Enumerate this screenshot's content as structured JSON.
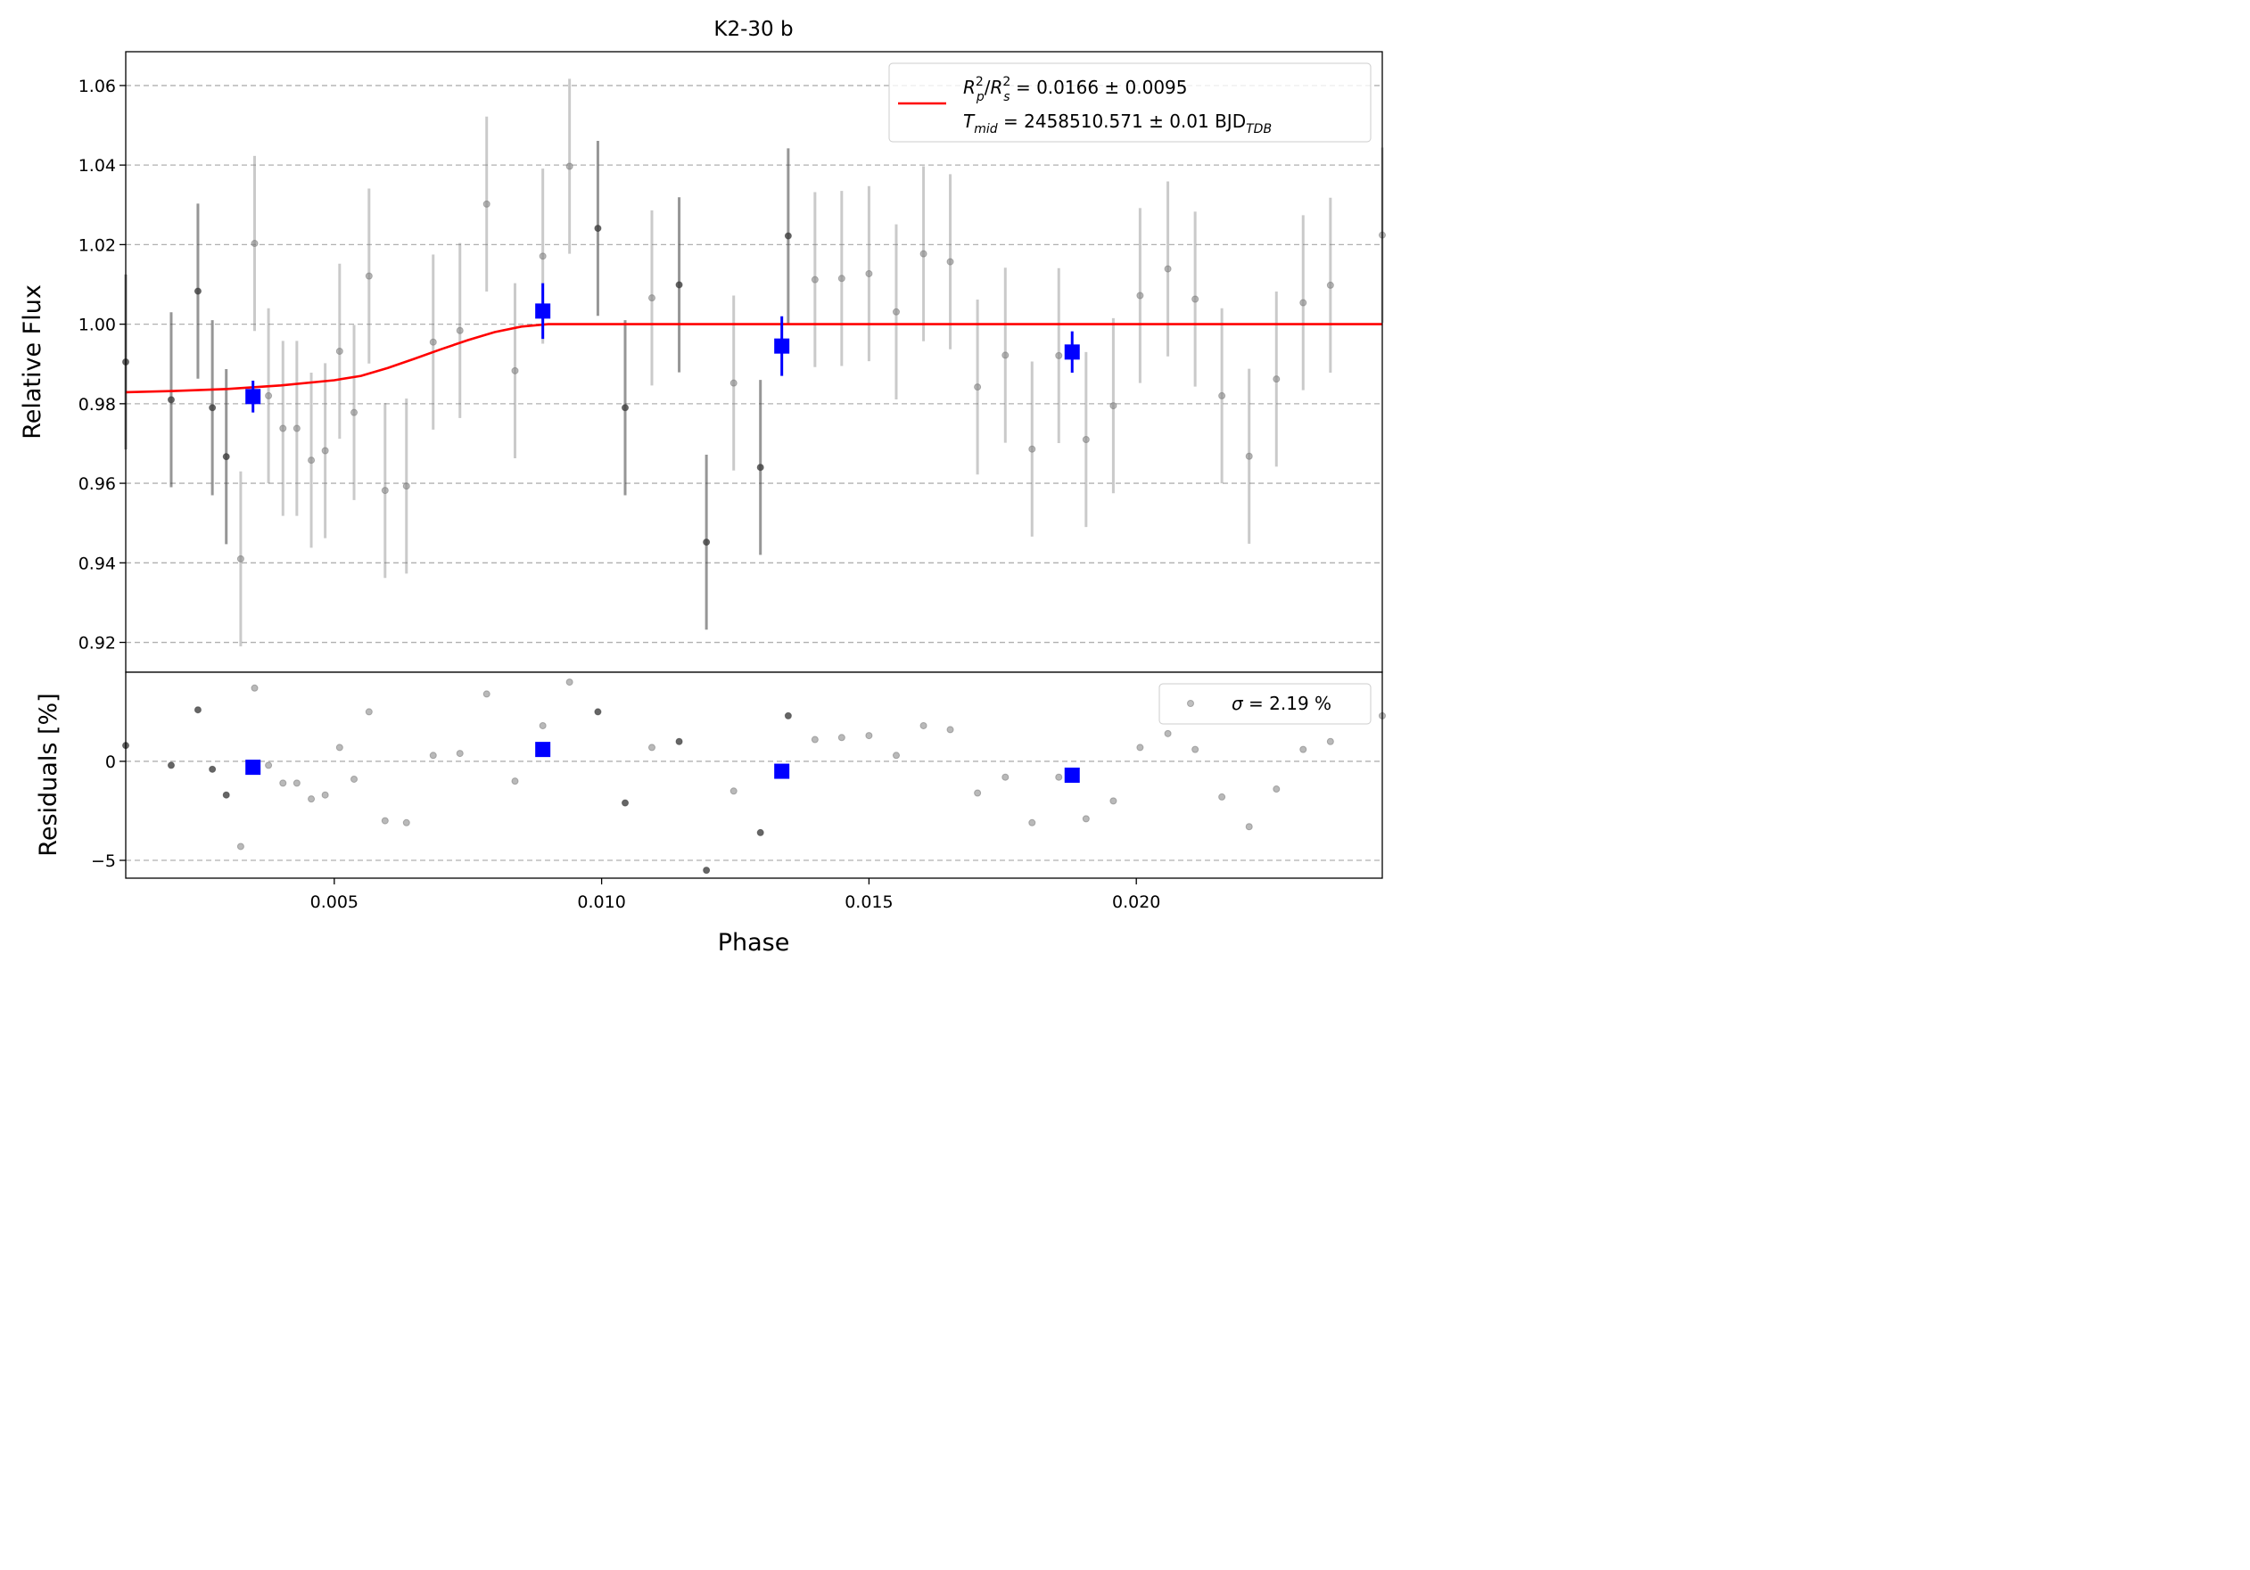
{
  "chart_data": {
    "type": "scatter",
    "title": "K2-30 b",
    "xlabel": "Phase",
    "xlim": [
      0.0011,
      0.0246
    ],
    "x_ticks": [
      "0.005",
      "0.010",
      "0.015",
      "0.020"
    ],
    "x_tick_values": [
      0.005,
      0.01,
      0.015,
      0.02
    ],
    "grid": "horizontal dashed",
    "colors": {
      "raw": "#808080",
      "raw_dark": "#404040",
      "binned": "#0000ff",
      "model": "#ff0000",
      "grid": "#b0b0b0"
    },
    "top_panel": {
      "ylabel": "Relative Flux",
      "ylim": [
        0.9125,
        1.0685
      ],
      "y_ticks": [
        "0.92",
        "0.94",
        "0.96",
        "0.98",
        "1.00",
        "1.02",
        "1.04",
        "1.06"
      ],
      "y_tick_values": [
        0.92,
        0.94,
        0.96,
        0.98,
        1.0,
        1.02,
        1.04,
        1.06
      ],
      "legend": {
        "position": "upper right",
        "line1": {
          "a": "R",
          "a_sup": "2",
          "a_sub": "p",
          "slash": "/",
          "b": "R",
          "b_sup": "2",
          "b_sub": "s",
          "value": " = 0.0166 ± 0.0095"
        },
        "line2": {
          "a": "T",
          "a_sub": "mid",
          "value": " = 2458510.571 ± 0.01 BJD",
          "value_sub": "TDB"
        }
      },
      "raw_points": [
        {
          "x": 0.0011,
          "y": 0.9905,
          "e": 0.022,
          "dark": true
        },
        {
          "x": 0.00195,
          "y": 0.981,
          "e": 0.022,
          "dark": true
        },
        {
          "x": 0.00245,
          "y": 1.0083,
          "e": 0.022,
          "dark": true
        },
        {
          "x": 0.00272,
          "y": 0.979,
          "e": 0.022,
          "dark": true
        },
        {
          "x": 0.00298,
          "y": 0.9667,
          "e": 0.022,
          "dark": true
        },
        {
          "x": 0.00325,
          "y": 0.941,
          "e": 0.022,
          "dark": false
        },
        {
          "x": 0.00351,
          "y": 1.0203,
          "e": 0.022,
          "dark": false
        },
        {
          "x": 0.00377,
          "y": 0.982,
          "e": 0.022,
          "dark": false
        },
        {
          "x": 0.00404,
          "y": 0.9738,
          "e": 0.022,
          "dark": false
        },
        {
          "x": 0.0043,
          "y": 0.9738,
          "e": 0.022,
          "dark": false
        },
        {
          "x": 0.00457,
          "y": 0.9658,
          "e": 0.022,
          "dark": false
        },
        {
          "x": 0.00483,
          "y": 0.9682,
          "e": 0.022,
          "dark": false
        },
        {
          "x": 0.0051,
          "y": 0.9932,
          "e": 0.022,
          "dark": false
        },
        {
          "x": 0.00537,
          "y": 0.9778,
          "e": 0.022,
          "dark": false
        },
        {
          "x": 0.00565,
          "y": 1.0121,
          "e": 0.022,
          "dark": false
        },
        {
          "x": 0.00595,
          "y": 0.9582,
          "e": 0.022,
          "dark": false
        },
        {
          "x": 0.00635,
          "y": 0.9593,
          "e": 0.022,
          "dark": false
        },
        {
          "x": 0.00685,
          "y": 0.9955,
          "e": 0.022,
          "dark": false
        },
        {
          "x": 0.00735,
          "y": 0.9984,
          "e": 0.022,
          "dark": false
        },
        {
          "x": 0.00785,
          "y": 1.0302,
          "e": 0.022,
          "dark": false
        },
        {
          "x": 0.00838,
          "y": 0.9883,
          "e": 0.022,
          "dark": false
        },
        {
          "x": 0.0089,
          "y": 1.0171,
          "e": 0.022,
          "dark": false
        },
        {
          "x": 0.0094,
          "y": 1.0397,
          "e": 0.022,
          "dark": false
        },
        {
          "x": 0.00993,
          "y": 1.0241,
          "e": 0.022,
          "dark": true
        },
        {
          "x": 0.01044,
          "y": 0.979,
          "e": 0.022,
          "dark": true
        },
        {
          "x": 0.01094,
          "y": 1.0066,
          "e": 0.022,
          "dark": false
        },
        {
          "x": 0.01145,
          "y": 1.0099,
          "e": 0.022,
          "dark": true
        },
        {
          "x": 0.01196,
          "y": 0.9452,
          "e": 0.022,
          "dark": true
        },
        {
          "x": 0.01247,
          "y": 0.9852,
          "e": 0.022,
          "dark": false
        },
        {
          "x": 0.01297,
          "y": 0.964,
          "e": 0.022,
          "dark": true
        },
        {
          "x": 0.01349,
          "y": 1.0222,
          "e": 0.022,
          "dark": true
        },
        {
          "x": 0.01399,
          "y": 1.0112,
          "e": 0.022,
          "dark": false
        },
        {
          "x": 0.01449,
          "y": 1.0115,
          "e": 0.022,
          "dark": false
        },
        {
          "x": 0.015,
          "y": 1.0127,
          "e": 0.022,
          "dark": false
        },
        {
          "x": 0.01551,
          "y": 1.0031,
          "e": 0.022,
          "dark": false
        },
        {
          "x": 0.01602,
          "y": 1.0177,
          "e": 0.022,
          "dark": false
        },
        {
          "x": 0.01652,
          "y": 1.0157,
          "e": 0.022,
          "dark": false
        },
        {
          "x": 0.01703,
          "y": 0.9842,
          "e": 0.022,
          "dark": false
        },
        {
          "x": 0.01755,
          "y": 0.9922,
          "e": 0.022,
          "dark": false
        },
        {
          "x": 0.01805,
          "y": 0.9686,
          "e": 0.022,
          "dark": false
        },
        {
          "x": 0.01855,
          "y": 0.9921,
          "e": 0.022,
          "dark": false
        },
        {
          "x": 0.01906,
          "y": 0.971,
          "e": 0.022,
          "dark": false
        },
        {
          "x": 0.01957,
          "y": 0.9795,
          "e": 0.022,
          "dark": false
        },
        {
          "x": 0.02007,
          "y": 1.0072,
          "e": 0.022,
          "dark": false
        },
        {
          "x": 0.02059,
          "y": 1.0139,
          "e": 0.022,
          "dark": false
        },
        {
          "x": 0.0211,
          "y": 1.0063,
          "e": 0.022,
          "dark": false
        },
        {
          "x": 0.0216,
          "y": 0.982,
          "e": 0.022,
          "dark": false
        },
        {
          "x": 0.02211,
          "y": 0.9668,
          "e": 0.022,
          "dark": false
        },
        {
          "x": 0.02262,
          "y": 0.9862,
          "e": 0.022,
          "dark": false
        },
        {
          "x": 0.02312,
          "y": 1.0054,
          "e": 0.022,
          "dark": false
        },
        {
          "x": 0.02363,
          "y": 1.0098,
          "e": 0.022,
          "dark": false
        },
        {
          "x": 0.0246,
          "y": 1.0224,
          "e": 0.022,
          "dark": false
        }
      ],
      "binned_points": [
        {
          "x": 0.00348,
          "y": 0.9818,
          "e": 0.004
        },
        {
          "x": 0.0089,
          "y": 1.0033,
          "e": 0.007
        },
        {
          "x": 0.01337,
          "y": 0.9945,
          "e": 0.0075
        },
        {
          "x": 0.0188,
          "y": 0.993,
          "e": 0.0052
        }
      ],
      "model": {
        "x": [
          0.0011,
          0.002,
          0.003,
          0.004,
          0.005,
          0.0055,
          0.006,
          0.0065,
          0.007,
          0.0075,
          0.008,
          0.0085,
          0.009,
          0.0092,
          0.01,
          0.015,
          0.02,
          0.0246
        ],
        "y": [
          0.9829,
          0.9832,
          0.9837,
          0.9846,
          0.9859,
          0.987,
          0.989,
          0.9913,
          0.9937,
          0.996,
          0.998,
          0.9994,
          1.0,
          1.0,
          1.0,
          1.0,
          1.0,
          1.0
        ]
      }
    },
    "bottom_panel": {
      "ylabel": "Residuals [%]",
      "ylim": [
        -5.9,
        4.5
      ],
      "y_ticks": [
        "−5",
        "0"
      ],
      "y_tick_values": [
        -5,
        0
      ],
      "legend": {
        "position": "upper right",
        "sigma": "σ",
        "value": " = 2.19 %"
      },
      "raw_points": [
        {
          "x": 0.0011,
          "y": 0.8,
          "dark": true
        },
        {
          "x": 0.00195,
          "y": -0.2,
          "dark": true
        },
        {
          "x": 0.00245,
          "y": 2.6,
          "dark": true
        },
        {
          "x": 0.00272,
          "y": -0.4,
          "dark": true
        },
        {
          "x": 0.00298,
          "y": -1.7,
          "dark": true
        },
        {
          "x": 0.00325,
          "y": -4.3,
          "dark": false
        },
        {
          "x": 0.00351,
          "y": 3.7,
          "dark": false
        },
        {
          "x": 0.00377,
          "y": -0.2,
          "dark": false
        },
        {
          "x": 0.00404,
          "y": -1.1,
          "dark": false
        },
        {
          "x": 0.0043,
          "y": -1.1,
          "dark": false
        },
        {
          "x": 0.00457,
          "y": -1.9,
          "dark": false
        },
        {
          "x": 0.00483,
          "y": -1.7,
          "dark": false
        },
        {
          "x": 0.0051,
          "y": 0.7,
          "dark": false
        },
        {
          "x": 0.00537,
          "y": -0.9,
          "dark": false
        },
        {
          "x": 0.00565,
          "y": 2.5,
          "dark": false
        },
        {
          "x": 0.00595,
          "y": -3.0,
          "dark": false
        },
        {
          "x": 0.00635,
          "y": -3.1,
          "dark": false
        },
        {
          "x": 0.00685,
          "y": 0.3,
          "dark": false
        },
        {
          "x": 0.00735,
          "y": 0.4,
          "dark": false
        },
        {
          "x": 0.00785,
          "y": 3.4,
          "dark": false
        },
        {
          "x": 0.00838,
          "y": -1.0,
          "dark": false
        },
        {
          "x": 0.0089,
          "y": 1.8,
          "dark": false
        },
        {
          "x": 0.0094,
          "y": 4.0,
          "dark": false
        },
        {
          "x": 0.00993,
          "y": 2.5,
          "dark": true
        },
        {
          "x": 0.01044,
          "y": -2.1,
          "dark": true
        },
        {
          "x": 0.01094,
          "y": 0.7,
          "dark": false
        },
        {
          "x": 0.01145,
          "y": 1.0,
          "dark": true
        },
        {
          "x": 0.01196,
          "y": -5.5,
          "dark": true
        },
        {
          "x": 0.01247,
          "y": -1.5,
          "dark": false
        },
        {
          "x": 0.01297,
          "y": -3.6,
          "dark": true
        },
        {
          "x": 0.01349,
          "y": 2.3,
          "dark": true
        },
        {
          "x": 0.01399,
          "y": 1.1,
          "dark": false
        },
        {
          "x": 0.01449,
          "y": 1.2,
          "dark": false
        },
        {
          "x": 0.015,
          "y": 1.3,
          "dark": false
        },
        {
          "x": 0.01551,
          "y": 0.3,
          "dark": false
        },
        {
          "x": 0.01602,
          "y": 1.8,
          "dark": false
        },
        {
          "x": 0.01652,
          "y": 1.6,
          "dark": false
        },
        {
          "x": 0.01703,
          "y": -1.6,
          "dark": false
        },
        {
          "x": 0.01755,
          "y": -0.8,
          "dark": false
        },
        {
          "x": 0.01805,
          "y": -3.1,
          "dark": false
        },
        {
          "x": 0.01855,
          "y": -0.8,
          "dark": false
        },
        {
          "x": 0.01906,
          "y": -2.9,
          "dark": false
        },
        {
          "x": 0.01957,
          "y": -2.0,
          "dark": false
        },
        {
          "x": 0.02007,
          "y": 0.7,
          "dark": false
        },
        {
          "x": 0.02059,
          "y": 1.4,
          "dark": false
        },
        {
          "x": 0.0211,
          "y": 0.6,
          "dark": false
        },
        {
          "x": 0.0216,
          "y": -1.8,
          "dark": false
        },
        {
          "x": 0.02211,
          "y": -3.3,
          "dark": false
        },
        {
          "x": 0.02262,
          "y": -1.4,
          "dark": false
        },
        {
          "x": 0.02312,
          "y": 0.6,
          "dark": false
        },
        {
          "x": 0.02363,
          "y": 1.0,
          "dark": false
        },
        {
          "x": 0.0246,
          "y": 2.3,
          "dark": false
        }
      ],
      "binned_points": [
        {
          "x": 0.00348,
          "y": -0.3
        },
        {
          "x": 0.0089,
          "y": 0.6
        },
        {
          "x": 0.01337,
          "y": -0.5
        },
        {
          "x": 0.0188,
          "y": -0.7
        }
      ]
    }
  }
}
